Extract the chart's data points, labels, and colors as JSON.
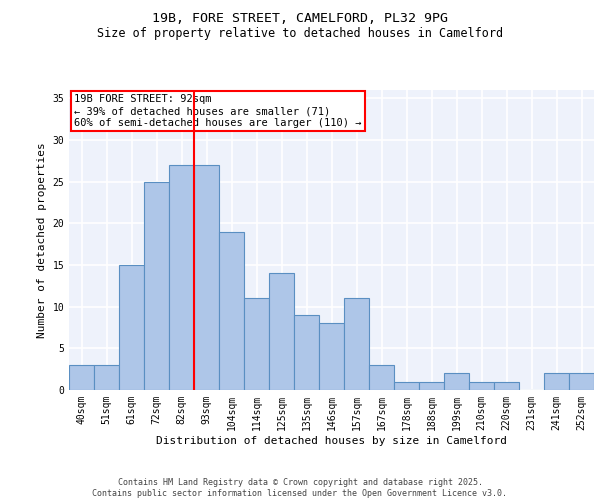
{
  "title1": "19B, FORE STREET, CAMELFORD, PL32 9PG",
  "title2": "Size of property relative to detached houses in Camelford",
  "xlabel": "Distribution of detached houses by size in Camelford",
  "ylabel": "Number of detached properties",
  "categories": [
    "40sqm",
    "51sqm",
    "61sqm",
    "72sqm",
    "82sqm",
    "93sqm",
    "104sqm",
    "114sqm",
    "125sqm",
    "135sqm",
    "146sqm",
    "157sqm",
    "167sqm",
    "178sqm",
    "188sqm",
    "199sqm",
    "210sqm",
    "220sqm",
    "231sqm",
    "241sqm",
    "252sqm"
  ],
  "values": [
    3,
    3,
    15,
    25,
    27,
    27,
    19,
    11,
    14,
    9,
    8,
    11,
    3,
    1,
    1,
    2,
    1,
    1,
    0,
    2,
    2
  ],
  "bar_color": "#aec6e8",
  "bar_edge_color": "#5a8fc2",
  "bar_edge_width": 0.8,
  "red_line_index": 4.5,
  "annotation_text": "19B FORE STREET: 92sqm\n← 39% of detached houses are smaller (71)\n60% of semi-detached houses are larger (110) →",
  "ylim": [
    0,
    36
  ],
  "yticks": [
    0,
    5,
    10,
    15,
    20,
    25,
    30,
    35
  ],
  "background_color": "#eef2fb",
  "footer": "Contains HM Land Registry data © Crown copyright and database right 2025.\nContains public sector information licensed under the Open Government Licence v3.0.",
  "grid_color": "#ffffff",
  "title_fontsize": 9.5,
  "subtitle_fontsize": 8.5,
  "axis_label_fontsize": 8,
  "tick_fontsize": 7,
  "annotation_fontsize": 7.5,
  "footer_fontsize": 6
}
